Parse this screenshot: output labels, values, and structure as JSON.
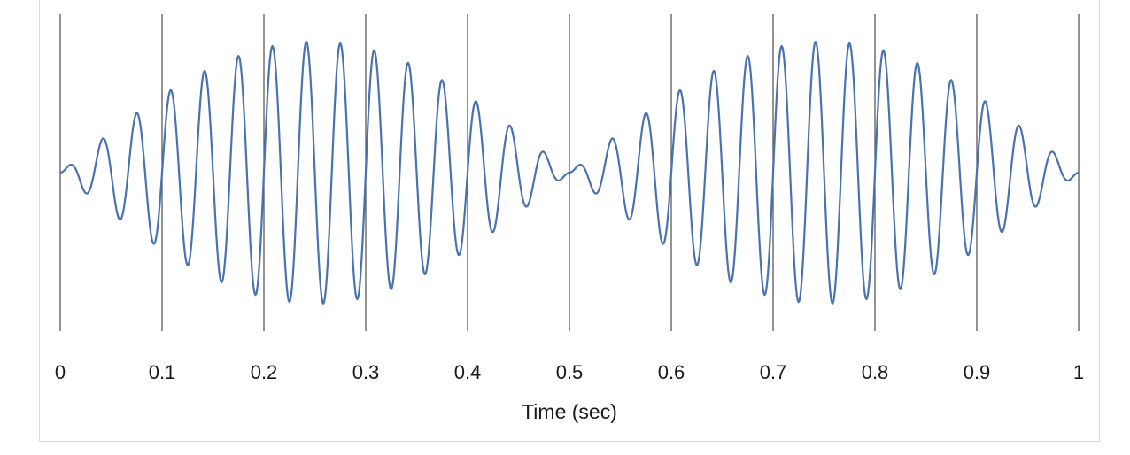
{
  "chart_data": {
    "type": "line",
    "title": "",
    "xlabel": "Time (sec)",
    "ylabel": "",
    "xlim": [
      0,
      1
    ],
    "ylim": [
      -1.1,
      1.1
    ],
    "grid": "vertical",
    "legend": "none",
    "x_ticks": [
      0,
      0.1,
      0.2,
      0.3,
      0.4,
      0.5,
      0.6,
      0.7,
      0.8,
      0.9,
      1
    ],
    "x_tick_labels": [
      "0",
      "0.1",
      "0.2",
      "0.3",
      "0.4",
      "0.5",
      "0.6",
      "0.7",
      "0.8",
      "0.9",
      "1"
    ],
    "series": [
      {
        "color": "#4a72b0",
        "envelope_beat_frequency_hz": 2,
        "carrier_frequency_hz": 30,
        "peak_amplitude": 1.0,
        "sample_count": 1200
      }
    ]
  }
}
